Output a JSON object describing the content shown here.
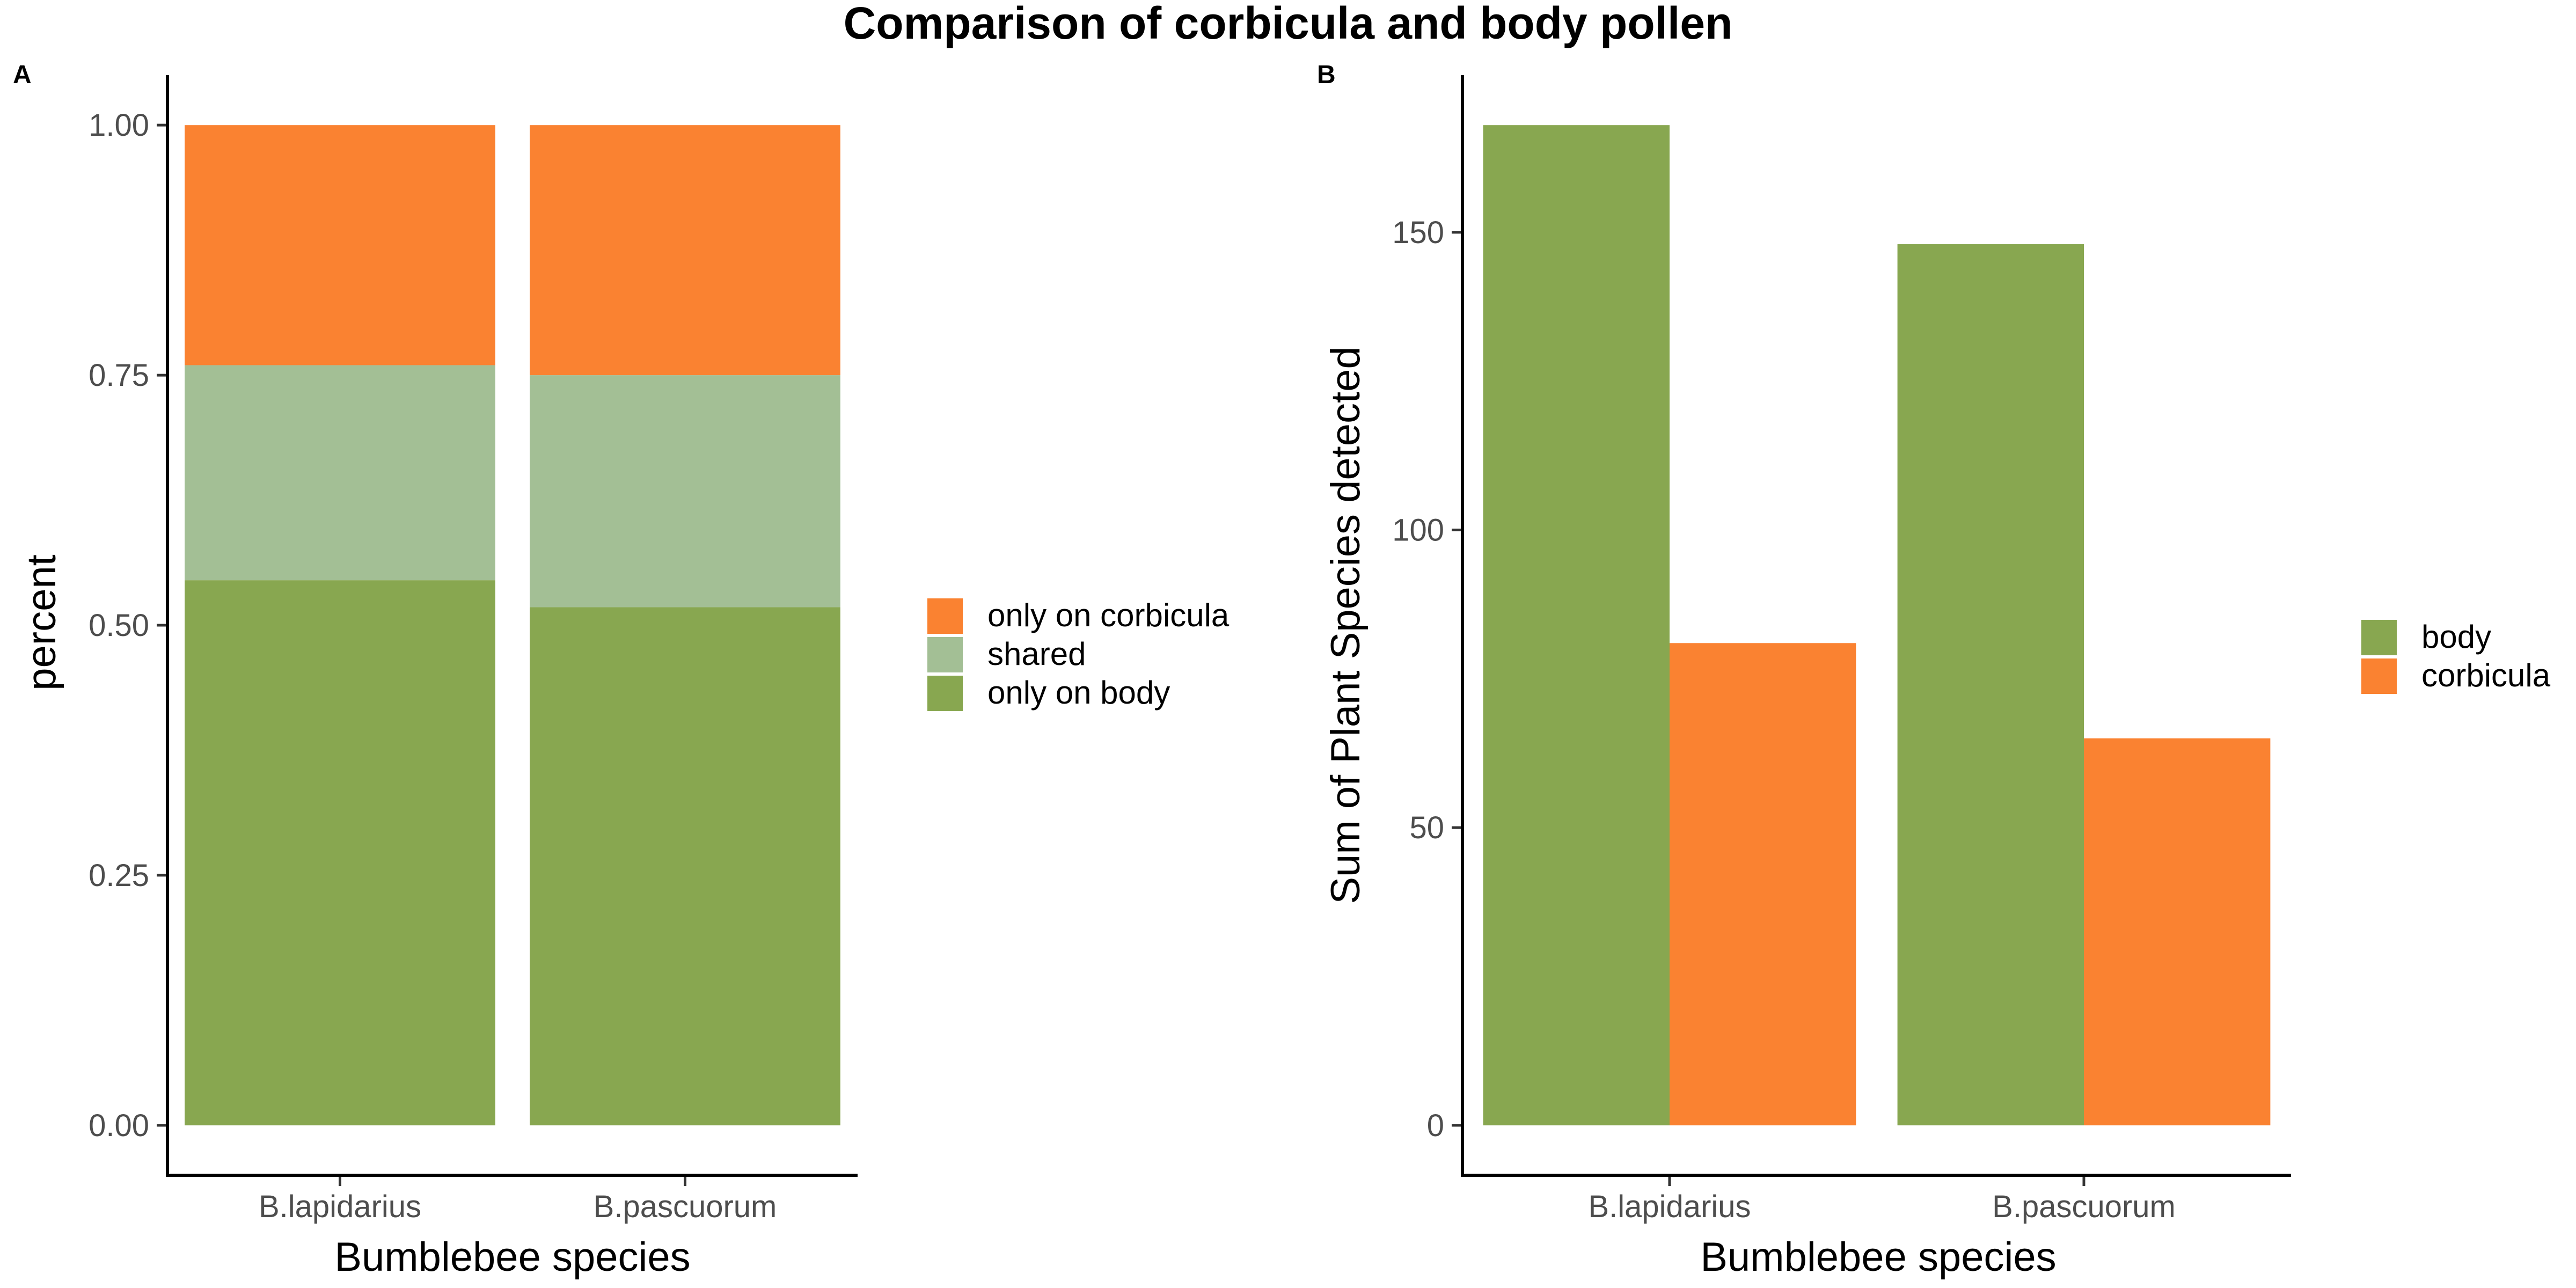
{
  "figure": {
    "title": "Comparison of corbicula and body pollen"
  },
  "colors": {
    "only_on_corbicula": "#fa8231",
    "shared": "#a3bf95",
    "only_on_body": "#88a750",
    "body": "#88a750",
    "corbicula": "#fa8231"
  },
  "chart_data": [
    {
      "panel": "A",
      "type": "bar",
      "stacked": true,
      "categories": [
        "B.lapidarius",
        "B.pascuorum"
      ],
      "series": [
        {
          "name": "only on body",
          "values": [
            0.545,
            0.518
          ],
          "color": "#88a750"
        },
        {
          "name": "shared",
          "values": [
            0.215,
            0.232
          ],
          "color": "#a3bf95"
        },
        {
          "name": "only on corbicula",
          "values": [
            0.24,
            0.25
          ],
          "color": "#fa8231"
        }
      ],
      "legend_order": [
        "only on corbicula",
        "shared",
        "only on body"
      ],
      "xlabel": "Bumblebee species",
      "ylabel": "percent",
      "ylim": [
        -0.05,
        1.05
      ],
      "yticks": [
        0,
        0.25,
        0.5,
        0.75,
        1
      ],
      "ytick_labels": [
        "0.00",
        "0.25",
        "0.50",
        "0.75",
        "1.00"
      ],
      "grid": false,
      "legend_position": "right"
    },
    {
      "panel": "B",
      "type": "bar",
      "grouped": true,
      "categories": [
        "B.lapidarius",
        "B.pascuorum"
      ],
      "series": [
        {
          "name": "body",
          "values": [
            168,
            148
          ],
          "color": "#88a750"
        },
        {
          "name": "corbicula",
          "values": [
            81,
            65
          ],
          "color": "#fa8231"
        }
      ],
      "xlabel": "Bumblebee species",
      "ylabel": "Sum of Plant Species detected",
      "ylim": [
        -8.4,
        176.4
      ],
      "yticks": [
        0,
        50,
        100,
        150
      ],
      "ytick_labels": [
        "0",
        "50",
        "100",
        "150"
      ],
      "grid": false,
      "legend_position": "right"
    }
  ]
}
